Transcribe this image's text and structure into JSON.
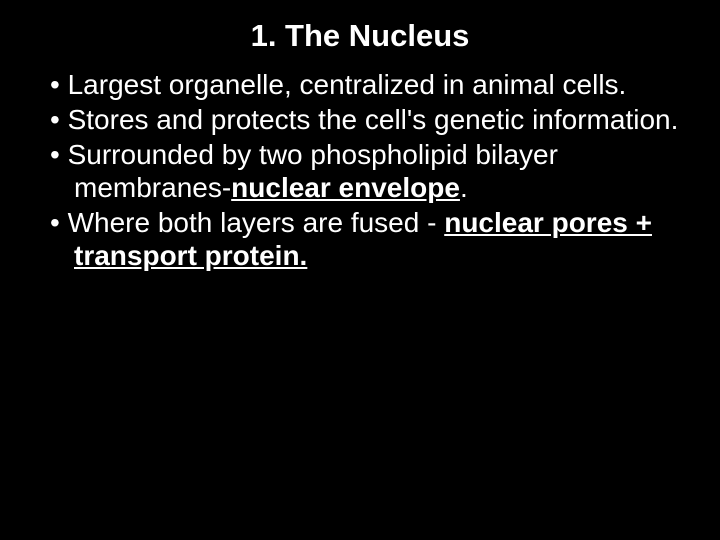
{
  "slide": {
    "background_color": "#000000",
    "text_color": "#ffffff",
    "title": "1. The Nucleus",
    "title_fontsize": 31,
    "title_weight": "bold",
    "body_fontsize": 28,
    "bullets": [
      {
        "text_pre": "Largest organelle, centralized in animal cells.",
        "emphasis": "",
        "text_post": ""
      },
      {
        "text_pre": "Stores and protects the cell's genetic information.",
        "emphasis": "",
        "text_post": ""
      },
      {
        "text_pre": "Surrounded by two phospholipid bilayer membranes-",
        "emphasis": "nuclear envelope",
        "text_post": "."
      },
      {
        "text_pre": "Where both layers are fused - ",
        "emphasis": "nuclear pores + transport protein.",
        "text_post": ""
      }
    ]
  }
}
